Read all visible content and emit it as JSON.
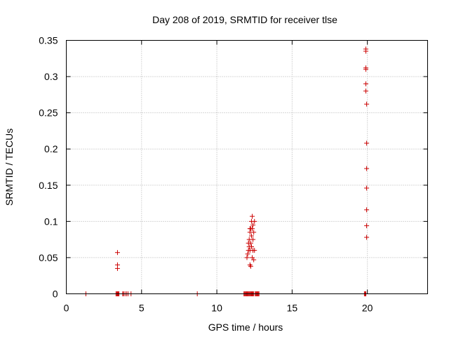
{
  "chart_data": {
    "type": "scatter",
    "title": "Day 208 of 2019, SRMTID for receiver tlse",
    "xlabel": "GPS time / hours",
    "ylabel": "SRMTID / TECUs",
    "xlim": [
      0,
      24
    ],
    "ylim": [
      0,
      0.35
    ],
    "xticks": [
      0,
      5,
      10,
      15,
      20
    ],
    "yticks": [
      0,
      0.05,
      0.1,
      0.15,
      0.2,
      0.25,
      0.3,
      0.35
    ],
    "xtick_labels": [
      "0",
      "5",
      "10",
      "15",
      "20"
    ],
    "ytick_labels": [
      "0",
      "0.05",
      "0.1",
      "0.15",
      "0.2",
      "0.25",
      "0.3",
      "0.35"
    ],
    "grid": true,
    "marker": "+",
    "color": "#cc0000",
    "series": [
      {
        "x": [
          1.3,
          3.3,
          3.35,
          3.4,
          3.45,
          3.5,
          3.75,
          3.8,
          3.9,
          4.0,
          4.1,
          4.3,
          8.7,
          11.8,
          11.85,
          11.9,
          11.95,
          12.0,
          12.05,
          12.1,
          12.15,
          12.2,
          12.25,
          12.3,
          12.35,
          12.4,
          12.45,
          12.55,
          12.6,
          12.65,
          12.7,
          12.75,
          12.8,
          19.8,
          19.85,
          19.9,
          3.4,
          3.4,
          3.4,
          12.0,
          12.05,
          12.1,
          12.1,
          12.15,
          12.15,
          12.2,
          12.2,
          12.2,
          12.25,
          12.25,
          12.25,
          12.3,
          12.3,
          12.3,
          12.35,
          12.35,
          12.35,
          12.4,
          12.4,
          12.4,
          12.45,
          12.45,
          12.5,
          12.5,
          12.2,
          12.3,
          19.9,
          19.9,
          19.9,
          19.9,
          19.9,
          19.9,
          19.95,
          19.95,
          19.95,
          19.95,
          19.95,
          19.95,
          19.95
        ],
        "y": [
          0,
          0,
          0,
          0,
          0,
          0,
          0,
          0,
          0,
          0,
          0,
          0,
          0,
          0,
          0,
          0,
          0,
          0,
          0,
          0,
          0,
          0,
          0,
          0,
          0,
          0,
          0,
          0,
          0,
          0,
          0,
          0,
          0,
          0,
          0,
          0,
          0.057,
          0.04,
          0.035,
          0.05,
          0.055,
          0.06,
          0.07,
          0.075,
          0.065,
          0.04,
          0.085,
          0.06,
          0.09,
          0.07,
          0.038,
          0.1,
          0.065,
          0.08,
          0.107,
          0.09,
          0.05,
          0.095,
          0.075,
          0.06,
          0.085,
          0.047,
          0.1,
          0.06,
          0.09,
          0.065,
          0.338,
          0.335,
          0.312,
          0.31,
          0.29,
          0.28,
          0.262,
          0.208,
          0.173,
          0.146,
          0.116,
          0.094,
          0.078
        ]
      }
    ]
  }
}
